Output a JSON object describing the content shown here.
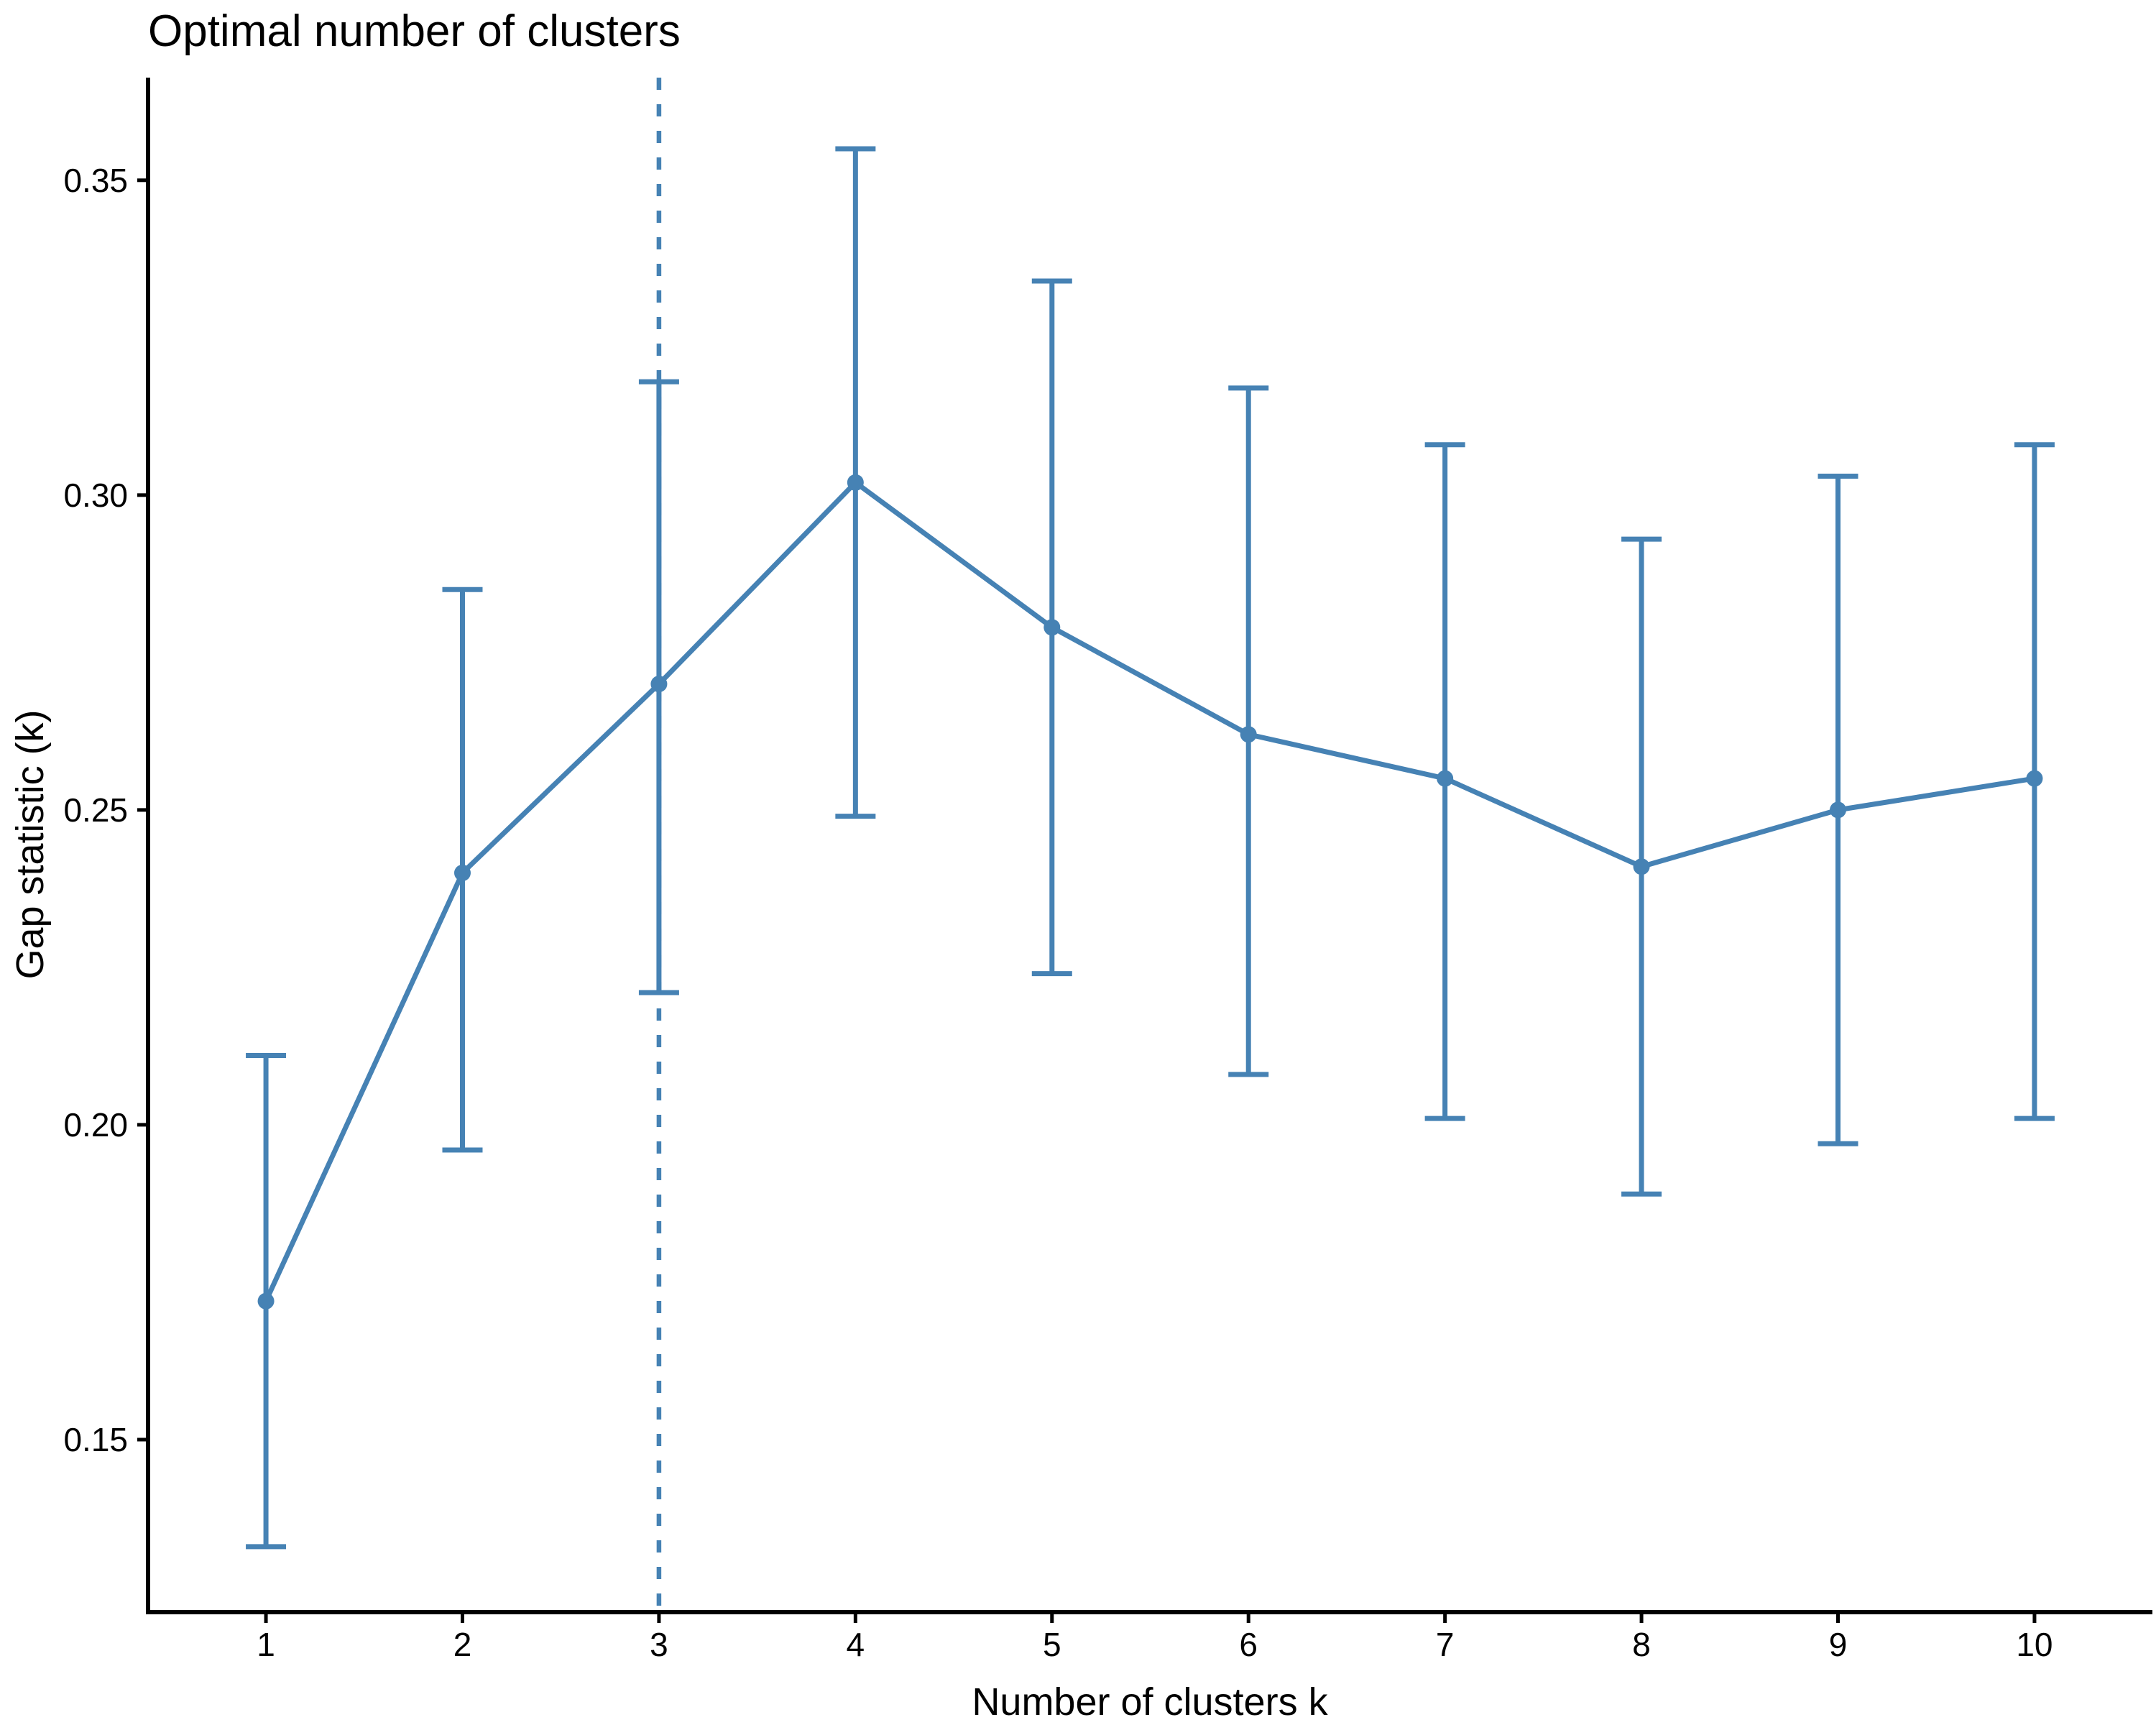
{
  "chart_data": {
    "type": "line",
    "title": "Optimal number of clusters",
    "xlabel": "Number of clusters k",
    "ylabel": "Gap statistic (k)",
    "x": [
      1,
      2,
      3,
      4,
      5,
      6,
      7,
      8,
      9,
      10
    ],
    "series": [
      {
        "name": "Gap statistic",
        "values": [
          0.172,
          0.24,
          0.27,
          0.302,
          0.279,
          0.262,
          0.255,
          0.241,
          0.25,
          0.255
        ]
      },
      {
        "name": "Gap - SE (error bar lower)",
        "values": [
          0.133,
          0.196,
          0.221,
          0.249,
          0.224,
          0.208,
          0.201,
          0.189,
          0.197,
          0.201
        ]
      },
      {
        "name": "Gap + SE (error bar upper)",
        "values": [
          0.211,
          0.285,
          0.318,
          0.355,
          0.334,
          0.317,
          0.308,
          0.293,
          0.303,
          0.308
        ]
      }
    ],
    "error_bars": true,
    "points": true,
    "optimal_k_vline": {
      "x": 3,
      "style": "dashed"
    },
    "x_tick_labels": [
      "1",
      "2",
      "3",
      "4",
      "5",
      "6",
      "7",
      "8",
      "9",
      "10"
    ],
    "y_tick_labels": [
      "0.15",
      "0.20",
      "0.25",
      "0.30",
      "0.35"
    ],
    "y_tick_values": [
      0.15,
      0.2,
      0.25,
      0.3,
      0.35
    ],
    "xlim": [
      0.4,
      10.6
    ],
    "ylim": [
      0.1226,
      0.3663
    ],
    "grid": false,
    "legend": "none",
    "colors": {
      "series": "#4682B4",
      "axis": "#000000",
      "text": "#000000",
      "background": "#ffffff"
    }
  }
}
